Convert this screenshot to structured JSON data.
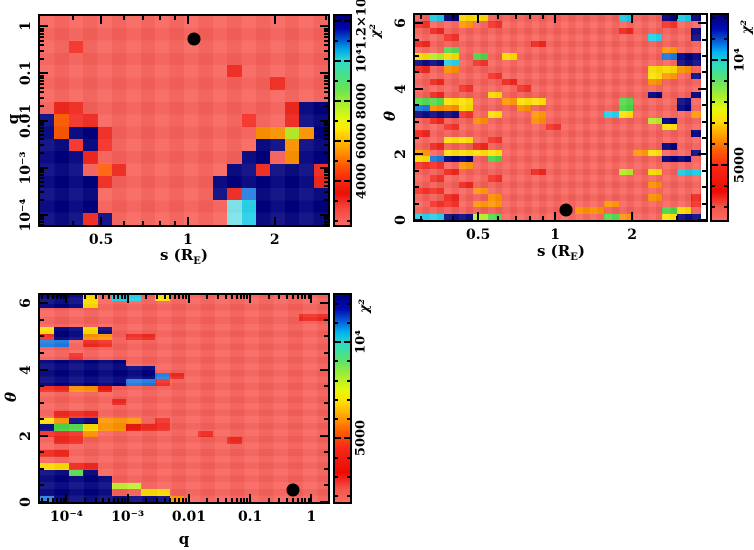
{
  "palette": {
    ".": "#F9615A",
    "r": "#F3291F",
    "R": "#E80D00",
    "O": "#FF5A00",
    "o": "#FF9400",
    "y": "#FFDF00",
    "Y": "#BCEF2A",
    "g": "#4FD848",
    "c": "#1FCEE8",
    "C": "#82E9EF",
    "b": "#1E7BE0",
    "N": "#00007E"
  },
  "chart_data": [
    {
      "type": "heatmap",
      "title": "",
      "xlabel": {
        "pre": "s  (R",
        "sub": "E",
        "post": ")"
      },
      "ylabel": "q",
      "x_axis": {
        "type": "log",
        "min": 0.307,
        "max": 3.06,
        "majors": [
          {
            "v": 0.5,
            "label": "0.5"
          },
          {
            "v": 1,
            "label": "1"
          },
          {
            "v": 2,
            "label": "2"
          }
        ]
      },
      "y_axis": {
        "type": "log",
        "min": 6e-05,
        "max": 1.67,
        "majors": [
          {
            "v": 1,
            "label": "1"
          },
          {
            "v": 0.1,
            "label": "0.1"
          },
          {
            "v": 0.01,
            "label": "0.01"
          },
          {
            "v": 0.001,
            "label": "10⁻³"
          },
          {
            "v": 0.0001,
            "label": "10⁻⁴"
          }
        ]
      },
      "colorbar": {
        "label": "χ²",
        "axis": {
          "type": "linear",
          "min": 1800,
          "max": 12250,
          "minor_step": 1000,
          "majors": [
            {
              "v": 4000,
              "label": "4000"
            },
            {
              "v": 6000,
              "label": "6000"
            },
            {
              "v": 8000,
              "label": "8000"
            },
            {
              "v": 10000,
              "label": "10⁴"
            },
            {
              "v": 12000,
              "label": "1.2×10⁴"
            }
          ]
        },
        "stops": [
          [
            0,
            "#00007E"
          ],
          [
            0.06,
            "#0006A8"
          ],
          [
            0.11,
            "#0050D0"
          ],
          [
            0.16,
            "#00A4E8"
          ],
          [
            0.21,
            "#2BD8D4"
          ],
          [
            0.28,
            "#47E18C"
          ],
          [
            0.35,
            "#66E455"
          ],
          [
            0.42,
            "#A6EF2E"
          ],
          [
            0.49,
            "#E2F80E"
          ],
          [
            0.54,
            "#FFE800"
          ],
          [
            0.6,
            "#FFB900"
          ],
          [
            0.66,
            "#FF8C00"
          ],
          [
            0.72,
            "#FF5200"
          ],
          [
            0.78,
            "#F92A12"
          ],
          [
            0.85,
            "#EE0F05"
          ],
          [
            0.92,
            "#F4463D"
          ],
          [
            1,
            "#FA6B61"
          ]
        ]
      },
      "marker": {
        "vx": 1.05,
        "vy": 0.55
      },
      "grid": {
        "cols": 20,
        "rows": 17,
        "cells": [
          "....................",
          "....................",
          "..r.................",
          "....................",
          ".............r......",
          "................r...",
          "....................",
          ".rr..............rNN",
          "NOrr..........r..rNN",
          "NONNr..........ooYoN",
          "NNrNr..........NNoNN",
          "NNNr..........NN.oNN",
          "NNN.Or.......NNrNNNr",
          "NNNNr.......NNNNNNNr",
          "NNNN........NrbNNNNN",
          "NNNN.........CcNNNNN",
          "NNNrN........CcNNNNN"
        ]
      }
    },
    {
      "type": "heatmap",
      "title": "",
      "xlabel": {
        "pre": "s  (R",
        "sub": "E",
        "post": ")"
      },
      "ylabel": "θ",
      "x_axis": {
        "type": "log",
        "min": 0.283,
        "max": 3.89,
        "majors": [
          {
            "v": 0.5,
            "label": "0.5"
          },
          {
            "v": 1,
            "label": "1"
          },
          {
            "v": 2,
            "label": "2"
          }
        ]
      },
      "y_axis": {
        "type": "linear",
        "min": 0,
        "max": 6.25,
        "minor_step": 0.5,
        "majors": [
          {
            "v": 0,
            "label": "0"
          },
          {
            "v": 2,
            "label": "2"
          },
          {
            "v": 4,
            "label": "4"
          },
          {
            "v": 6,
            "label": "6"
          }
        ]
      },
      "colorbar": {
        "label": "χ²",
        "axis": {
          "type": "linear",
          "min": 2400,
          "max": 12150,
          "minor_step": 1000,
          "majors": [
            {
              "v": 5000,
              "label": "5000"
            },
            {
              "v": 10000,
              "label": "10⁴"
            }
          ]
        },
        "stops": [
          [
            0,
            "#00007E"
          ],
          [
            0.07,
            "#000CB4"
          ],
          [
            0.13,
            "#0860DC"
          ],
          [
            0.18,
            "#00B2F0"
          ],
          [
            0.24,
            "#2EDCC4"
          ],
          [
            0.31,
            "#57E272"
          ],
          [
            0.39,
            "#A4EE30"
          ],
          [
            0.46,
            "#E6F90A"
          ],
          [
            0.52,
            "#FFDC00"
          ],
          [
            0.59,
            "#FF9E00"
          ],
          [
            0.66,
            "#FF5E00"
          ],
          [
            0.74,
            "#F6281A"
          ],
          [
            0.86,
            "#ED0A02"
          ],
          [
            0.94,
            "#F5564E"
          ],
          [
            1,
            "#FA6A60"
          ]
        ]
      },
      "marker": {
        "vx": 1.1,
        "vy": 0.3
      },
      "grid": {
        "cols": 20,
        "rows": 32,
        "cells": [
          ".cNyy.........c..NcN",
          "r..o.r...........r..",
          ".r............r....N",
          "..r.............c..N",
          "r.......r...........",
          "..g..............o..",
          "yYy.g.y..........bNN",
          "NNc.r.............NN",
          "r.o.............yyo.",
          ".....r..........yo.N",
          ".r....r.........o...",
          "...r...r............",
          ".r...y..........N..N",
          "ggyy..oyy.....g...N.",
          "booy...o......g...N.",
          "NNNr.y..o....cy....o",
          ".r..o...o.......YN..",
          "..r......r.......y..",
          "r..................N",
          "..yy.r..............",
          ".r..r............N..",
          "o.yyyy.........oy..N",
          "ybNN.g...........NN.",
          "rr.o................",
          "..r.....r.....Y.y.cc",
          ".r...r..............",
          "...r............o...",
          "rr..o...............",
          "..r..o..........o..r",
          ".rr.oo.......o.....r",
          "...........oo....gy.",
          "ccNNYg.......go..yNN"
        ]
      }
    },
    {
      "type": "heatmap",
      "title": "",
      "xlabel": {
        "pre": "q",
        "sub": "",
        "post": ""
      },
      "ylabel": "θ",
      "x_axis": {
        "type": "log",
        "min": 3.7e-05,
        "max": 1.87,
        "majors": [
          {
            "v": 0.0001,
            "label": "10⁻⁴"
          },
          {
            "v": 0.001,
            "label": "10⁻³"
          },
          {
            "v": 0.01,
            "label": "0.01"
          },
          {
            "v": 0.1,
            "label": "0.1"
          },
          {
            "v": 1,
            "label": "1"
          }
        ]
      },
      "y_axis": {
        "type": "linear",
        "min": 0,
        "max": 6.25,
        "minor_step": 0.5,
        "majors": [
          {
            "v": 0,
            "label": "0"
          },
          {
            "v": 2,
            "label": "2"
          },
          {
            "v": 4,
            "label": "4"
          },
          {
            "v": 6,
            "label": "6"
          }
        ]
      },
      "colorbar": {
        "label": "χ²",
        "axis": {
          "type": "linear",
          "min": 1700,
          "max": 12450,
          "minor_step": 1000,
          "majors": [
            {
              "v": 5000,
              "label": "5000"
            },
            {
              "v": 10000,
              "label": "10⁴"
            }
          ]
        },
        "stops": [
          [
            0,
            "#00007E"
          ],
          [
            0.07,
            "#000CB4"
          ],
          [
            0.13,
            "#0860DC"
          ],
          [
            0.18,
            "#00B2F0"
          ],
          [
            0.24,
            "#2EDCC4"
          ],
          [
            0.31,
            "#57E272"
          ],
          [
            0.39,
            "#A4EE30"
          ],
          [
            0.46,
            "#E6F90A"
          ],
          [
            0.52,
            "#FFDC00"
          ],
          [
            0.59,
            "#FF9E00"
          ],
          [
            0.66,
            "#FF5E00"
          ],
          [
            0.74,
            "#F6281A"
          ],
          [
            0.86,
            "#ED0A02"
          ],
          [
            0.94,
            "#F5564E"
          ],
          [
            1,
            "#FA6A60"
          ]
        ]
      },
      "marker": {
        "vx": 0.5,
        "vy": 0.35
      },
      "grid": {
        "cols": 20,
        "rows": 32,
        "cells": [
          "NNNy.cc.y...........",
          "NNNy................",
          "....................",
          "..................rr",
          "....................",
          "yNNyN...............",
          "rNNoo.rr............",
          "bb.rr...............",
          "....................",
          "..r.................",
          "NNNNNN..............",
          "NNNNNNNN............",
          "NNNNNNNNbr..........",
          "NNNNNNbbr...........",
          "rrooR...............",
          "....................",
          ".....r..............",
          "....................",
          ".rrr................",
          "yoNNooo.r...........",
          "NggyooRrr...........",
          "rrro.......r........",
          ".rr..........r......",
          "....................",
          "rr..................",
          "....................",
          "yyrr................",
          "NNgN................",
          "NNNNN...............",
          "NNNNNYY.............",
          "NNNNN..yy...........",
          "bNNNNNNNNo.........."
        ]
      }
    }
  ]
}
